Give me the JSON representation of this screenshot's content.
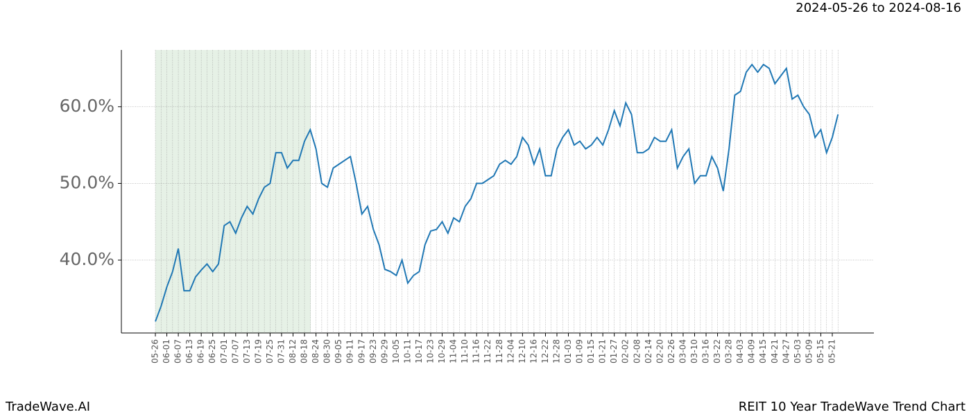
{
  "chart_data": {
    "type": "line",
    "title": "2024-05-26 to 2024-08-16",
    "footer_left": "TradeWave.AI",
    "footer_right": "REIT 10 Year TradeWave Trend Chart",
    "categories": [
      "05-26",
      null,
      "06-01",
      null,
      "06-07",
      null,
      "06-13",
      null,
      "06-19",
      null,
      "06-25",
      null,
      "07-01",
      null,
      "07-07",
      null,
      "07-13",
      null,
      "07-19",
      null,
      "07-25",
      null,
      "07-31",
      null,
      "08-12",
      null,
      "08-18",
      null,
      "08-24",
      null,
      "08-30",
      null,
      "09-05",
      null,
      "09-11",
      null,
      "09-17",
      null,
      "09-23",
      null,
      "09-29",
      null,
      "10-05",
      null,
      "10-11",
      null,
      "10-17",
      null,
      "10-23",
      null,
      "10-29",
      null,
      "11-04",
      null,
      "11-10",
      null,
      "11-16",
      null,
      "11-22",
      null,
      "11-28",
      null,
      "12-04",
      null,
      "12-10",
      null,
      "12-16",
      null,
      "12-22",
      null,
      "12-28",
      null,
      "01-03",
      null,
      "01-09",
      null,
      "01-15",
      null,
      "01-21",
      null,
      "01-27",
      null,
      "02-02",
      null,
      "02-08",
      null,
      "02-14",
      null,
      "02-20",
      null,
      "02-26",
      null,
      "03-04",
      null,
      "03-10",
      null,
      "03-16",
      null,
      "03-22",
      null,
      "03-28",
      null,
      "04-03",
      null,
      "04-09",
      null,
      "04-15",
      null,
      "04-21",
      null,
      "04-27",
      null,
      "05-03",
      null,
      "05-09",
      null,
      "05-15",
      null,
      "05-21",
      null
    ],
    "series": [
      {
        "color": "#1f77b4",
        "values": [
          32,
          34,
          36.5,
          38.5,
          41.5,
          36,
          36,
          37.8,
          38.7,
          39.5,
          38.5,
          39.5,
          44.5,
          45,
          43.5,
          45.5,
          47,
          46,
          48,
          49.5,
          50,
          54,
          54,
          52,
          53,
          53,
          55.5,
          57,
          54.5,
          50,
          49.5,
          52,
          52.5,
          53,
          53.5,
          50,
          46,
          47,
          44,
          42,
          38.8,
          38.5,
          38,
          40,
          37,
          38,
          38.5,
          42,
          43.8,
          44,
          45,
          43.5,
          45.5,
          45,
          47,
          48,
          50,
          50,
          50.5,
          51,
          52.5,
          53,
          52.5,
          53.5,
          56,
          55,
          52.5,
          54.5,
          51,
          51,
          54.5,
          56,
          57,
          55,
          55.5,
          54.5,
          55,
          56,
          55,
          57,
          59.5,
          57.5,
          60.5,
          59,
          54,
          54,
          54.5,
          56,
          55.5,
          55.5,
          57,
          52,
          53.5,
          54.5,
          50,
          51,
          51,
          53.5,
          52,
          49,
          54.5,
          61.5,
          62,
          64.5,
          65.5,
          64.5,
          65.5,
          65,
          63,
          64,
          65,
          61,
          61.5,
          60,
          59,
          56,
          57,
          54,
          56,
          59
        ]
      }
    ],
    "ylim": [
      30.5,
      67.4
    ],
    "yticks": [
      {
        "value": 40,
        "label": "40.0%"
      },
      {
        "value": 50,
        "label": "50.0%"
      },
      {
        "value": 60,
        "label": "60.0%"
      }
    ],
    "grid": true
  }
}
